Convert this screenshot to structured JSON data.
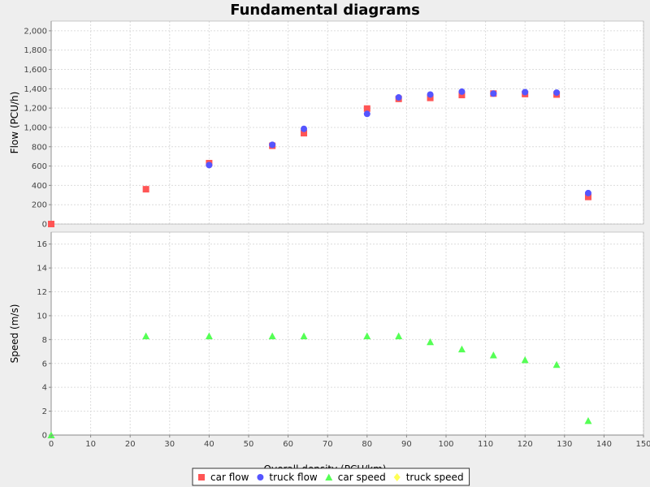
{
  "chart_data": {
    "type": "scatter",
    "title": "Fundamental diagrams",
    "xlabel": "Overall density (PCU/km)",
    "xlim": [
      0,
      150
    ],
    "xticks": [
      0,
      10,
      20,
      30,
      40,
      50,
      60,
      70,
      80,
      90,
      100,
      110,
      120,
      130,
      140,
      150
    ],
    "grid": true,
    "legend_position": "bottom",
    "panels": [
      {
        "ylabel": "Flow (PCU/h)",
        "ylim": [
          0,
          2100
        ],
        "yticks": [
          0,
          200,
          400,
          600,
          800,
          1000,
          1200,
          1400,
          1600,
          1800,
          2000
        ],
        "ytick_labels": [
          "0",
          "200",
          "400",
          "600",
          "800",
          "1,000",
          "1,200",
          "1,400",
          "1,600",
          "1,800",
          "2,000"
        ],
        "series": [
          {
            "name": "car flow",
            "marker": "square",
            "color": "#ff5555",
            "points": [
              [
                0,
                0
              ],
              [
                24,
                360
              ],
              [
                40,
                630
              ],
              [
                56,
                810
              ],
              [
                64,
                940
              ],
              [
                80,
                1195
              ],
              [
                88,
                1295
              ],
              [
                96,
                1305
              ],
              [
                104,
                1335
              ],
              [
                112,
                1350
              ],
              [
                120,
                1345
              ],
              [
                128,
                1340
              ],
              [
                136,
                280
              ]
            ]
          },
          {
            "name": "truck flow",
            "marker": "circle",
            "color": "#5555ff",
            "points": [
              [
                40,
                610
              ],
              [
                56,
                820
              ],
              [
                64,
                985
              ],
              [
                80,
                1140
              ],
              [
                88,
                1310
              ],
              [
                96,
                1340
              ],
              [
                104,
                1370
              ],
              [
                112,
                1350
              ],
              [
                120,
                1365
              ],
              [
                128,
                1360
              ],
              [
                136,
                320
              ]
            ]
          }
        ]
      },
      {
        "ylabel": "Speed (m/s)",
        "ylim": [
          0,
          17
        ],
        "yticks": [
          0,
          2,
          4,
          6,
          8,
          10,
          12,
          14,
          16
        ],
        "ytick_labels": [
          "0",
          "2",
          "4",
          "6",
          "8",
          "10",
          "12",
          "14",
          "16"
        ],
        "series": [
          {
            "name": "car speed",
            "marker": "triangle",
            "color": "#55ff55",
            "points": [
              [
                0,
                0
              ],
              [
                24,
                8.3
              ],
              [
                40,
                8.3
              ],
              [
                56,
                8.3
              ],
              [
                64,
                8.3
              ],
              [
                80,
                8.3
              ],
              [
                88,
                8.3
              ],
              [
                96,
                7.8
              ],
              [
                104,
                7.2
              ],
              [
                112,
                6.7
              ],
              [
                120,
                6.3
              ],
              [
                128,
                5.9
              ],
              [
                136,
                1.2
              ]
            ]
          },
          {
            "name": "truck speed",
            "marker": "diamond",
            "color": "#ffff55",
            "points": []
          }
        ]
      }
    ],
    "legend": [
      {
        "label": "car flow",
        "marker": "square",
        "color": "#ff5555"
      },
      {
        "label": "truck flow",
        "marker": "circle",
        "color": "#5555ff"
      },
      {
        "label": "car speed",
        "marker": "triangle",
        "color": "#55ff55"
      },
      {
        "label": "truck speed",
        "marker": "diamond",
        "color": "#ffff55"
      }
    ]
  }
}
